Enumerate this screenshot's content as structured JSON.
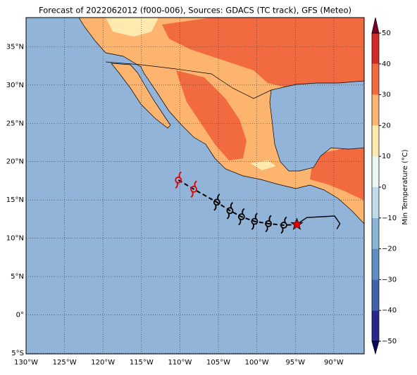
{
  "chart_data": {
    "type": "map",
    "title": "Forecast of 2022062012 (f000-006), Sources: GDACS (TC track), GFS (Meteo)",
    "lonlim": [
      -130,
      -86.05
    ],
    "latlim": [
      -5.1,
      38.8
    ],
    "xticks": [
      {
        "value": -130,
        "label": "130°W"
      },
      {
        "value": -125,
        "label": "125°W"
      },
      {
        "value": -120,
        "label": "120°W"
      },
      {
        "value": -115,
        "label": "115°W"
      },
      {
        "value": -110,
        "label": "110°W"
      },
      {
        "value": -105,
        "label": "105°W"
      },
      {
        "value": -100,
        "label": "100°W"
      },
      {
        "value": -95,
        "label": "95°W"
      },
      {
        "value": -90,
        "label": "90°W"
      }
    ],
    "yticks": [
      {
        "value": -5,
        "label": "5°S"
      },
      {
        "value": 0,
        "label": "0°"
      },
      {
        "value": 5,
        "label": "5°N"
      },
      {
        "value": 10,
        "label": "10°N"
      },
      {
        "value": 15,
        "label": "15°N"
      },
      {
        "value": 20,
        "label": "20°N"
      },
      {
        "value": 25,
        "label": "25°N"
      },
      {
        "value": 30,
        "label": "30°N"
      },
      {
        "value": 35,
        "label": "35°N"
      }
    ],
    "grid": true,
    "track": {
      "lon": [
        -110.2,
        -108.2,
        -105.2,
        -103.5,
        -102.0,
        -100.3,
        -98.5,
        -96.5
      ],
      "lat": [
        17.6,
        16.4,
        14.7,
        13.6,
        12.8,
        12.2,
        11.9,
        11.7
      ],
      "colors": [
        "#e00000",
        "#e00000",
        "#000000",
        "#000000",
        "#000000",
        "#000000",
        "#000000",
        "#000000"
      ]
    },
    "storm_position": {
      "lon": -94.8,
      "lat": 11.8,
      "color": "#e00000"
    },
    "past_track": {
      "lon": [
        -94.8,
        -93.5,
        -89.9,
        -89.2,
        -89.6
      ],
      "lat": [
        11.8,
        12.7,
        12.9,
        11.9,
        11.2
      ]
    },
    "colorbar": {
      "label": "Min Temperature (°C)",
      "ticks": [
        {
          "value": -50,
          "label": "−50"
        },
        {
          "value": -40,
          "label": "−40"
        },
        {
          "value": -30,
          "label": "−30"
        },
        {
          "value": -20,
          "label": "−20"
        },
        {
          "value": -10,
          "label": "−10"
        },
        0,
        10,
        20,
        30,
        40,
        50
      ],
      "colors": [
        "#27288a",
        "#3f63a8",
        "#5d8fc2",
        "#8ab3d8",
        "#c0dceb",
        "#eaf6f2",
        "#fee9ae",
        "#fdb46e",
        "#f26b40",
        "#d22b27"
      ],
      "over_color": "#7c0025",
      "under_color": "#0b0b5c"
    }
  }
}
